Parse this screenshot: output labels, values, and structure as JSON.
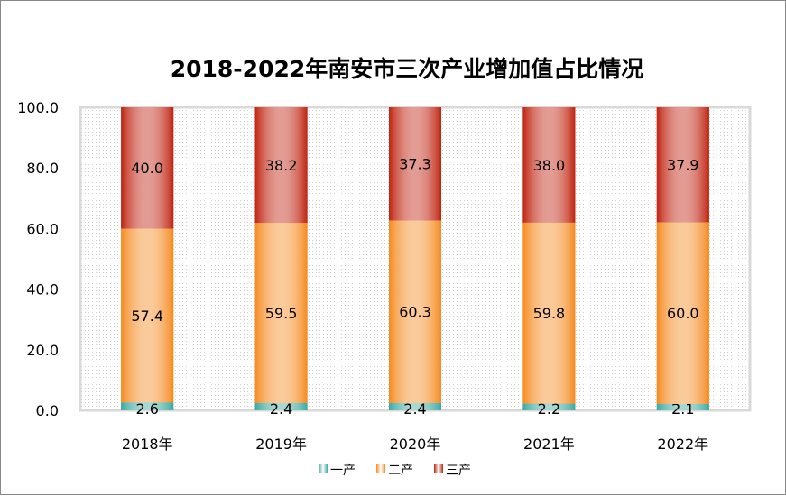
{
  "chart_data": {
    "type": "bar",
    "stacked": true,
    "title": "2018-2022年南安市三次产业增加值占比情况",
    "categories": [
      "2018年",
      "2019年",
      "2020年",
      "2021年",
      "2022年"
    ],
    "series": [
      {
        "name": "一产",
        "values": [
          2.6,
          2.4,
          2.4,
          2.2,
          2.1
        ],
        "color": "#3aa9a0"
      },
      {
        "name": "二产",
        "values": [
          57.4,
          59.5,
          60.3,
          59.8,
          60.0
        ],
        "color": "#f58a1f"
      },
      {
        "name": "三产",
        "values": [
          40.0,
          38.2,
          37.3,
          38.0,
          37.9
        ],
        "color": "#c0220f"
      }
    ],
    "ylim": [
      0,
      100
    ],
    "yticks": [
      "0.0",
      "20.0",
      "40.0",
      "60.0",
      "80.0",
      "100.0"
    ],
    "xlabel": "",
    "ylabel": "",
    "grid": false,
    "legend": "bottom"
  }
}
